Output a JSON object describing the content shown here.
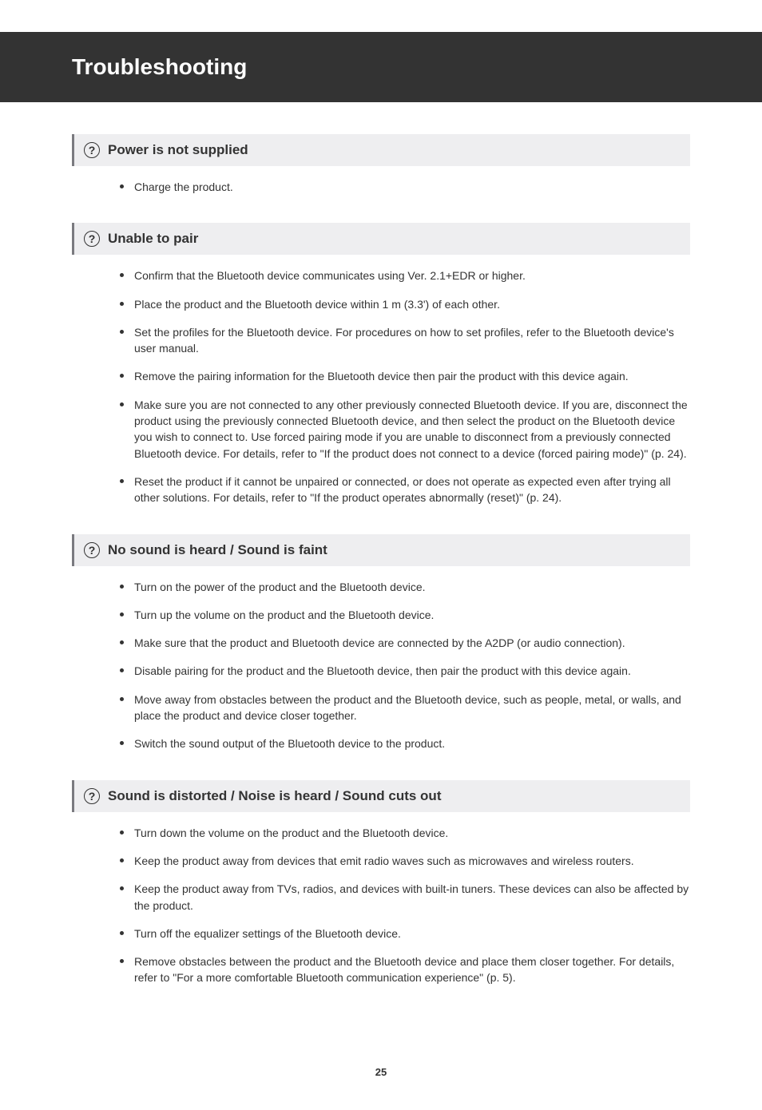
{
  "page_title": "Troubleshooting",
  "page_number": "25",
  "sections": [
    {
      "title": "Power is not supplied",
      "items": [
        "Charge the product."
      ]
    },
    {
      "title": "Unable to pair",
      "items": [
        "Confirm that the Bluetooth device communicates using Ver. 2.1+EDR or higher.",
        "Place the product and the Bluetooth device within 1 m (3.3') of each other.",
        "Set the profiles for the Bluetooth device. For procedures on how to set profiles, refer to the Bluetooth device's user manual.",
        "Remove the pairing information for the Bluetooth device then pair the product with this device again.",
        "Make sure you are not connected to any other previously connected Bluetooth device. If you are, disconnect the product using the previously connected Bluetooth device, and then select the product on the Bluetooth device you wish to connect to. Use forced pairing mode if you are unable to disconnect from a previously connected Bluetooth device. For details, refer to \"If the product does not connect to a device (forced pairing mode)\" (p. 24).",
        "Reset the product if it cannot be unpaired or connected, or does not operate as expected even after trying all other solutions. For details, refer to \"If the product operates abnormally (reset)\" (p. 24)."
      ]
    },
    {
      "title": "No sound is heard / Sound is faint",
      "items": [
        "Turn on the power of the product and the Bluetooth device.",
        "Turn up the volume on the product and the Bluetooth device.",
        "Make sure that the product and Bluetooth device are connected by the A2DP (or audio connection).",
        "Disable pairing for the product and the Bluetooth device, then pair the product with this device again.",
        "Move away from obstacles between the product and the Bluetooth device, such as people, metal, or walls, and place the product and device closer together.",
        "Switch the sound output of the Bluetooth device to the product."
      ]
    },
    {
      "title": "Sound is distorted / Noise is heard / Sound cuts out",
      "items": [
        "Turn down the volume on the product and the Bluetooth device.",
        "Keep the product away from devices that emit radio waves such as microwaves and wireless routers.",
        "Keep the product away from TVs, radios, and devices with built-in tuners. These devices can also be affected by the product.",
        "Turn off the equalizer settings of the Bluetooth device.",
        "Remove obstacles between the product and the Bluetooth device and place them closer together. For details, refer to \"For a more comfortable Bluetooth communication experience\" (p. 5)."
      ]
    }
  ]
}
